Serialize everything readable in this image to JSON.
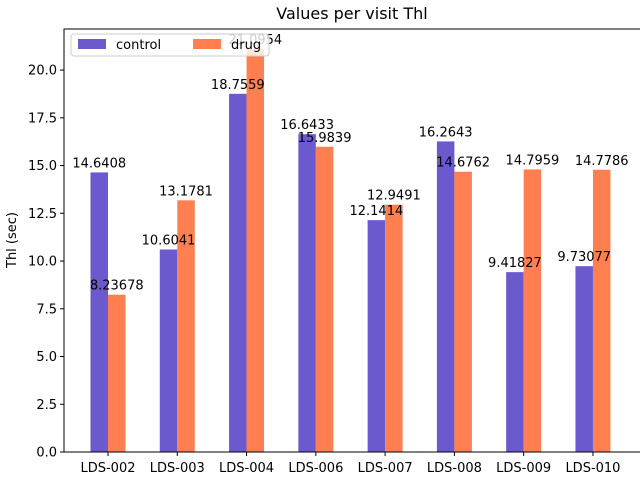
{
  "chart_data": {
    "type": "bar",
    "title": "Values per visit Thl",
    "xlabel": "",
    "ylabel": "Thl (sec)",
    "categories": [
      "LDS-002",
      "LDS-003",
      "LDS-004",
      "LDS-006",
      "LDS-007",
      "LDS-008",
      "LDS-009",
      "LDS-010"
    ],
    "series": [
      {
        "name": "control",
        "color": "#6a5acd",
        "values": [
          14.6408,
          10.6041,
          18.7559,
          16.6433,
          12.1414,
          16.2643,
          9.41827,
          9.73077
        ],
        "labels": [
          "14.6408",
          "10.6041",
          "18.7559",
          "16.6433",
          "12.1414",
          "16.2643",
          "9.41827",
          "9.73077"
        ]
      },
      {
        "name": "drug",
        "color": "#ff7f50",
        "values": [
          8.23678,
          13.1781,
          21.0954,
          15.9839,
          12.9491,
          14.6762,
          14.7959,
          14.7786
        ],
        "labels": [
          "8.23678",
          "13.1781",
          "21.0954",
          "15.9839",
          "12.9491",
          "14.6762",
          "14.7959",
          "14.7786"
        ]
      }
    ],
    "ylim": [
      0,
      22.15
    ],
    "yticks": [
      "0.0",
      "2.5",
      "5.0",
      "7.5",
      "10.0",
      "12.5",
      "15.0",
      "17.5",
      "20.0"
    ],
    "grid": false,
    "legend_position": "top-left"
  }
}
